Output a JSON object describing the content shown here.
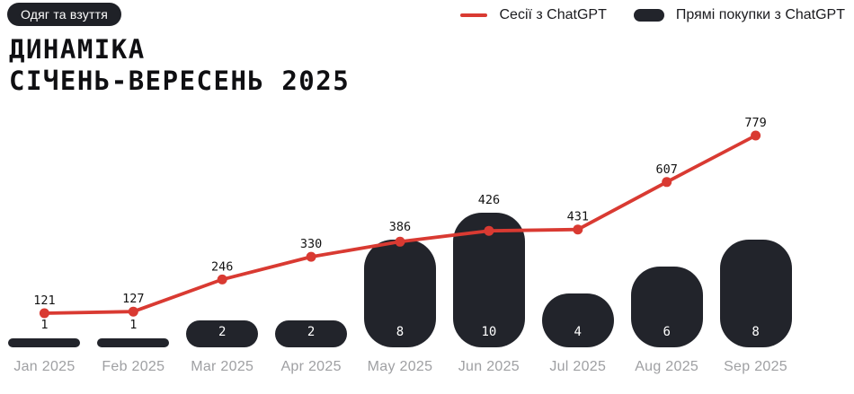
{
  "badge": {
    "label": "Одяг та взуття"
  },
  "title": {
    "line1": "ДИНАМІКА",
    "line2": "СІЧЕНЬ-ВЕРЕСЕНЬ 2025"
  },
  "legend": {
    "position": "top-right",
    "items": [
      {
        "label": "Сесії з ChatGPT",
        "swatch": "line",
        "color": "#d93a32"
      },
      {
        "label": "Прямі покупки з ChatGPT",
        "swatch": "pill",
        "color": "#22242b"
      }
    ]
  },
  "colors": {
    "background": "#ffffff",
    "line_accent": "#d93a32",
    "bar_dark": "#22242b",
    "badge_dark": "#1f2127",
    "axis_label_gray": "#9fa0a3",
    "text_black": "#131313"
  },
  "chart_data": {
    "type": "line+bar",
    "title": "ДИНАМІКА СІЧЕНЬ-ВЕРЕСЕНЬ 2025",
    "categories": [
      "Jan 2025",
      "Feb 2025",
      "Mar 2025",
      "Apr 2025",
      "May 2025",
      "Jun 2025",
      "Jul 2025",
      "Aug 2025",
      "Sep 2025"
    ],
    "series": [
      {
        "name": "Сесії з ChatGPT",
        "type": "line",
        "color": "#d93a32",
        "values": [
          121,
          127,
          246,
          330,
          386,
          426,
          431,
          607,
          779
        ]
      },
      {
        "name": "Прямі покупки з ChatGPT",
        "type": "bar",
        "color": "#22242b",
        "values": [
          1,
          1,
          2,
          2,
          8,
          10,
          4,
          6,
          8
        ]
      }
    ],
    "value_labels": true,
    "grid": false,
    "axes_hidden": true,
    "legend_position": "top-right",
    "line_value_range": [
      121,
      779
    ],
    "bar_value_range": [
      0,
      10
    ]
  }
}
